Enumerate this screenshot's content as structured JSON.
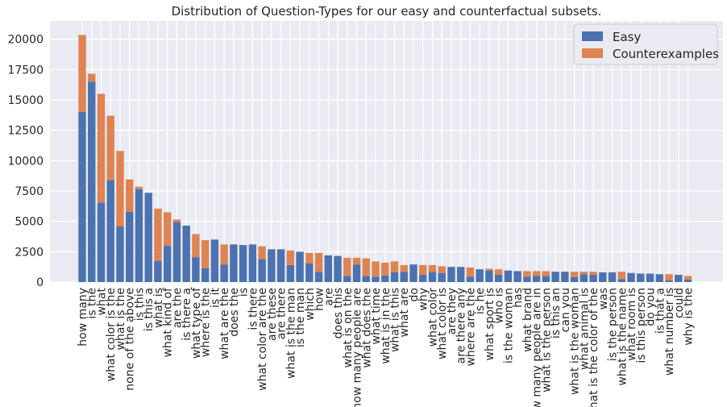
{
  "chart_data": {
    "type": "bar",
    "stacked": true,
    "title": "Distribution of Question-Types for our easy and counterfactual subsets.",
    "xlabel": "",
    "ylabel": "",
    "ylim": [
      0,
      21500
    ],
    "yticks": [
      0,
      2500,
      5000,
      7500,
      10000,
      12500,
      15000,
      17500,
      20000
    ],
    "grid": true,
    "legend_position": "top-right",
    "colors": {
      "easy": "#4c72b0",
      "counter": "#dd8452",
      "plot_bg": "#eaeaf2",
      "grid": "#ffffff"
    },
    "categories": [
      "how many",
      "is the",
      "what",
      "what color is the",
      "what is the",
      "none of the above",
      "is this",
      "is this a",
      "what is",
      "what kind of",
      "are the",
      "is there a",
      "what type of",
      "where is the",
      "is it",
      "what are the",
      "does the",
      "is",
      "is there",
      "what color are the",
      "are these",
      "are there",
      "what is the man",
      "is the man",
      "which",
      "how",
      "are",
      "does this",
      "what is on the",
      "how many people are",
      "what does the",
      "what time",
      "what is in the",
      "what is this",
      "what are",
      "do",
      "why",
      "what color",
      "what color is",
      "are they",
      "are there any",
      "where are the",
      "is he",
      "what sport is",
      "who is",
      "is the woman",
      "has",
      "what brand",
      "how many people are in",
      "what is the person",
      "is this an",
      "can you",
      "what is the woman",
      "what animal is",
      "what is the color of the",
      "was",
      "is the person",
      "what is the name",
      "what room is",
      "is this person",
      "do you",
      "is that a",
      "what number is",
      "could",
      "why is the"
    ],
    "series": [
      {
        "name": "Easy",
        "values": [
          14000,
          16500,
          6550,
          8400,
          4600,
          5800,
          7650,
          7350,
          1750,
          3000,
          4950,
          4650,
          2050,
          1150,
          3500,
          1450,
          3100,
          3050,
          3100,
          1900,
          2700,
          2700,
          1400,
          2500,
          1550,
          850,
          2200,
          2150,
          500,
          1450,
          500,
          450,
          550,
          800,
          850,
          1450,
          600,
          850,
          750,
          1250,
          1250,
          450,
          1050,
          950,
          600,
          950,
          900,
          450,
          500,
          500,
          850,
          850,
          400,
          650,
          600,
          800,
          800,
          250,
          750,
          700,
          700,
          650,
          150,
          600,
          200
        ]
      },
      {
        "name": "Counterexamples",
        "values": [
          6350,
          650,
          8950,
          5300,
          6200,
          2650,
          200,
          0,
          4300,
          2750,
          200,
          0,
          1900,
          2300,
          0,
          1650,
          0,
          0,
          0,
          1050,
          0,
          0,
          1200,
          0,
          850,
          1550,
          0,
          0,
          1500,
          550,
          1450,
          1250,
          1050,
          900,
          550,
          0,
          800,
          550,
          550,
          0,
          0,
          750,
          0,
          150,
          450,
          0,
          0,
          450,
          400,
          400,
          0,
          0,
          450,
          200,
          250,
          0,
          0,
          600,
          0,
          0,
          0,
          0,
          500,
          0,
          300
        ]
      }
    ]
  }
}
